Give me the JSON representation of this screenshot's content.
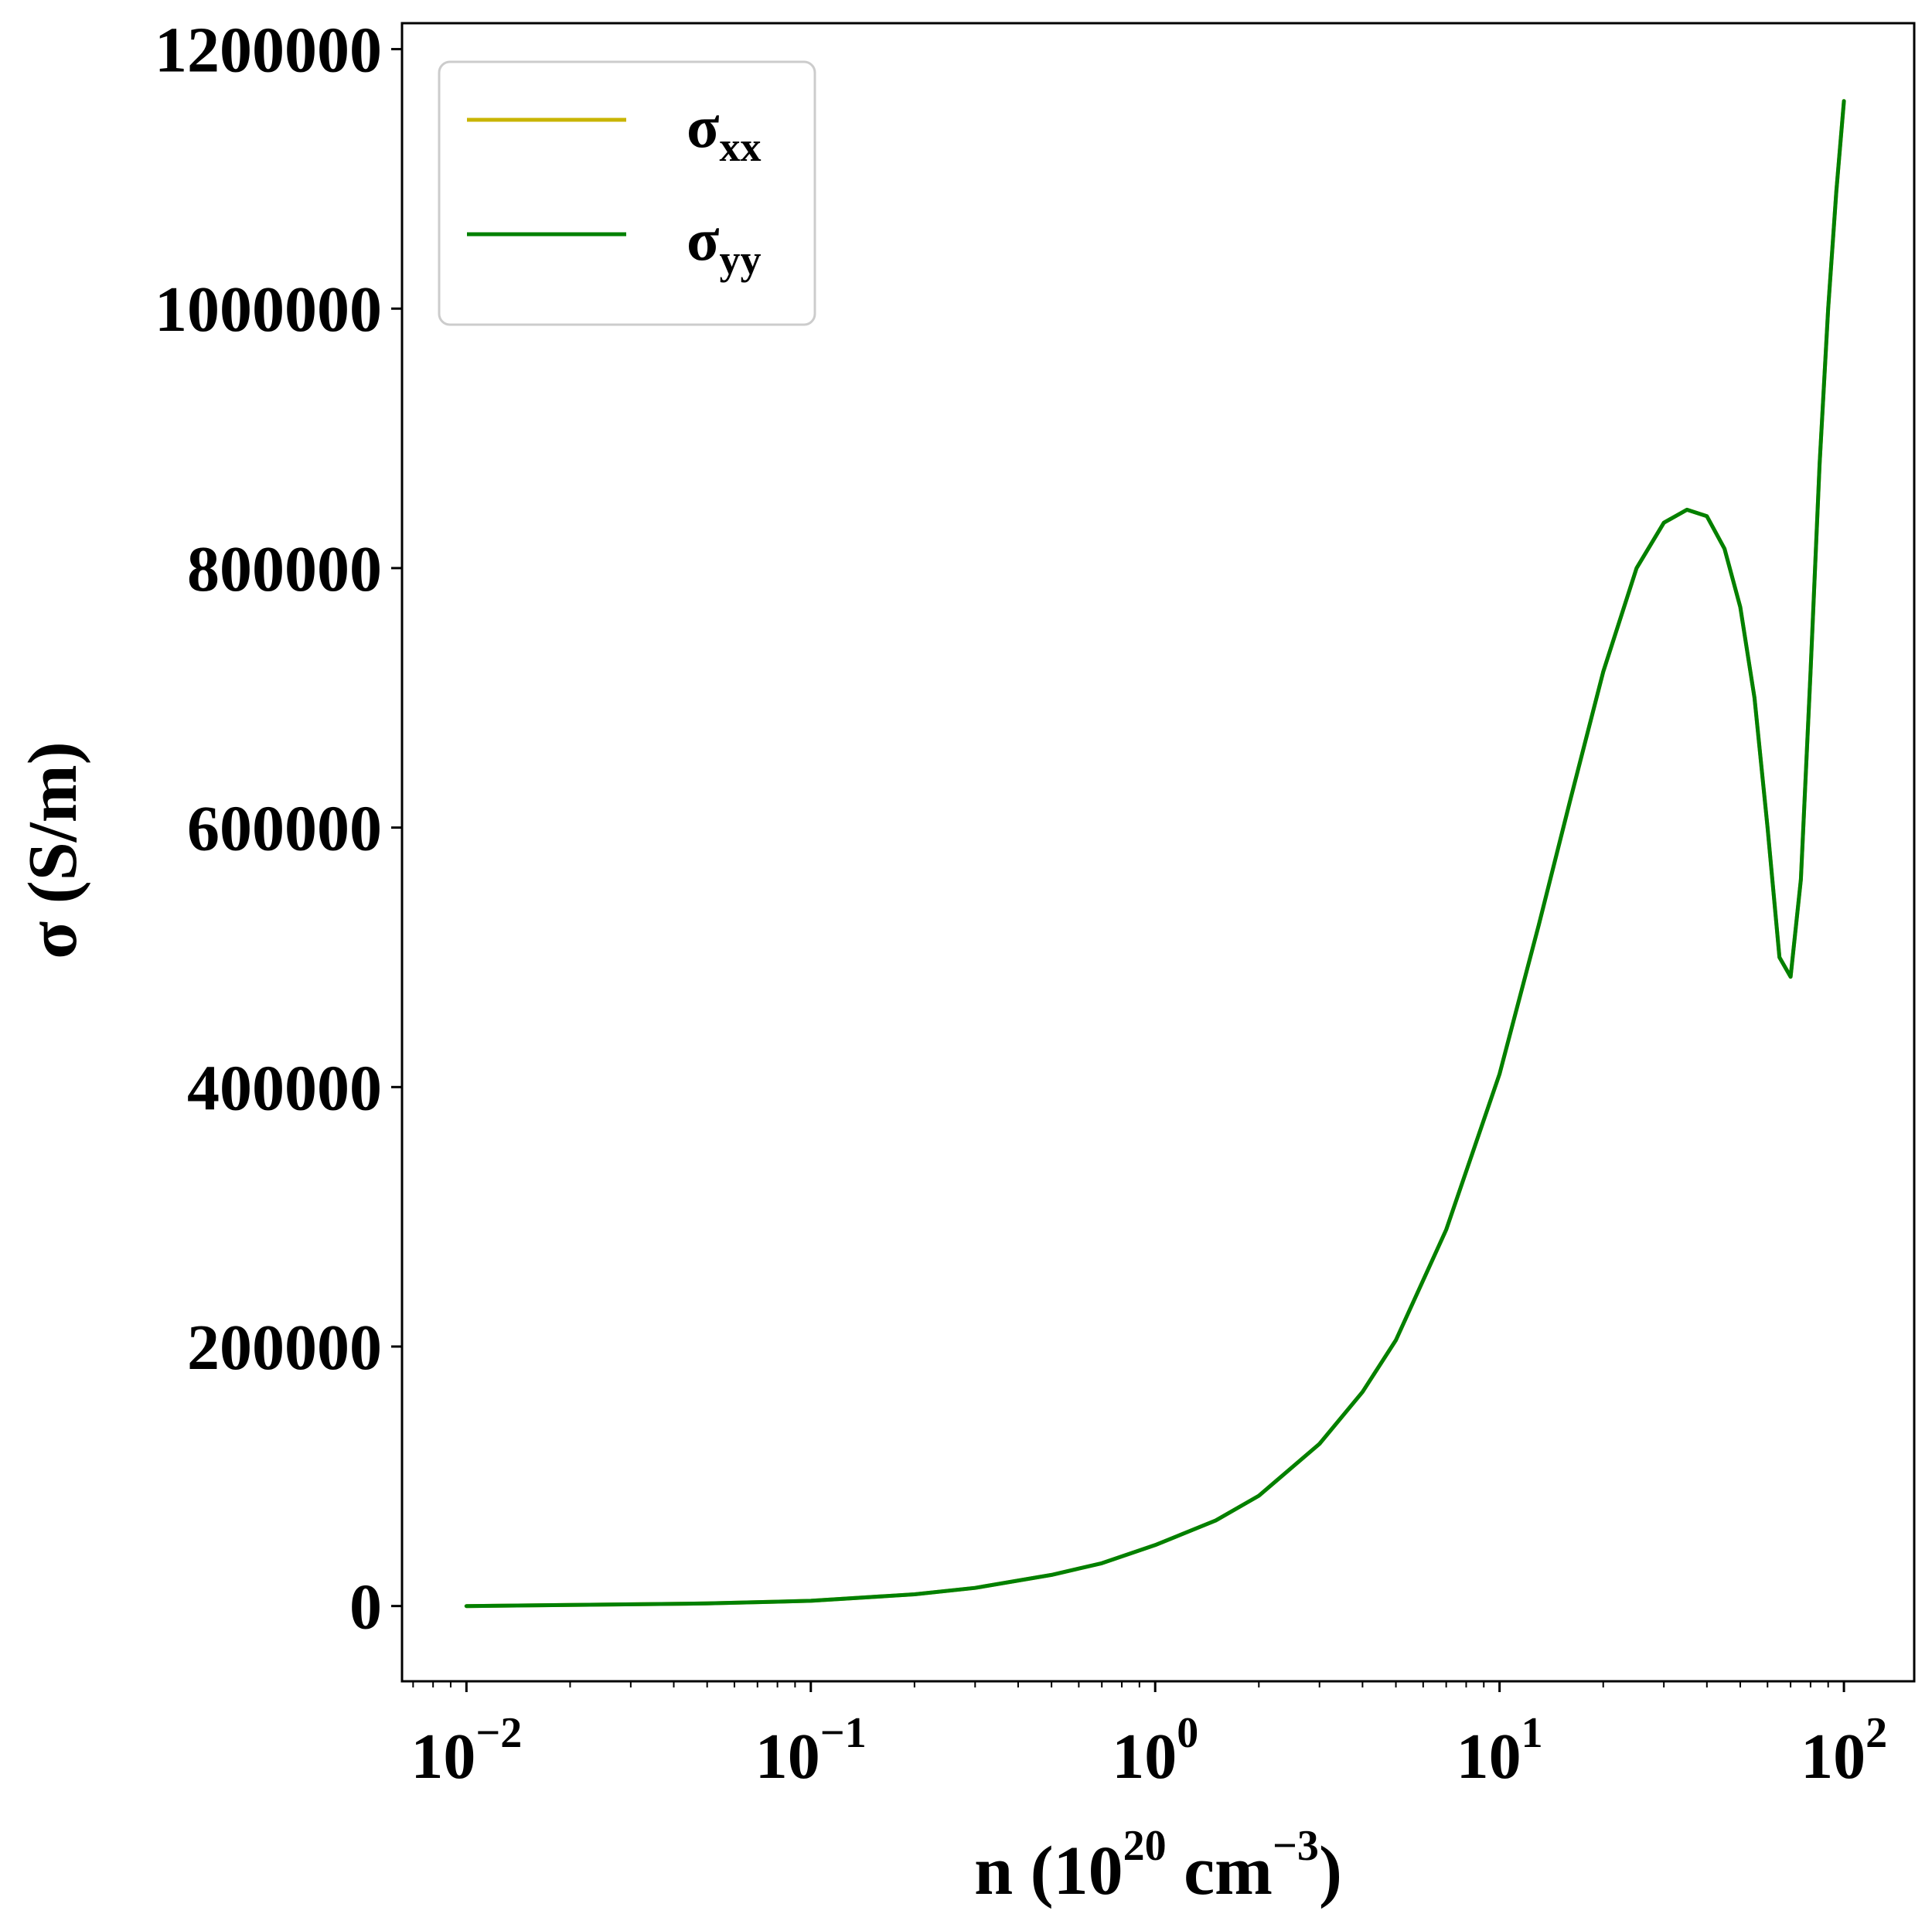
{
  "chart_data": {
    "type": "line",
    "xscale": "log",
    "xlim": [
      0.0065,
      160
    ],
    "ylim": [
      -58000,
      1220000
    ],
    "grid": false,
    "legend_position": "upper-left",
    "xlabel": {
      "base": "n (10",
      "sup1": "20",
      "mid": " cm",
      "sup2": "−3",
      "end": ")"
    },
    "ylabel": "σ (S/m)",
    "x_ticks": [
      {
        "value": 0.01,
        "base": "10",
        "exp": "−2"
      },
      {
        "value": 0.1,
        "base": "10",
        "exp": "−1"
      },
      {
        "value": 1,
        "base": "10",
        "exp": "0"
      },
      {
        "value": 10,
        "base": "10",
        "exp": "1"
      },
      {
        "value": 100,
        "base": "10",
        "exp": "2"
      }
    ],
    "y_ticks": [
      {
        "value": 0,
        "label": "0"
      },
      {
        "value": 200000,
        "label": "200000"
      },
      {
        "value": 400000,
        "label": "400000"
      },
      {
        "value": 600000,
        "label": "600000"
      },
      {
        "value": 800000,
        "label": "800000"
      },
      {
        "value": 1000000,
        "label": "1000000"
      },
      {
        "value": 1200000,
        "label": "1200000"
      }
    ],
    "series": [
      {
        "name": {
          "base": "σ",
          "sub": "xx"
        },
        "color": "#c8b400",
        "x": [
          0.01,
          0.02,
          0.05,
          0.1,
          0.2,
          0.3,
          0.5,
          0.7,
          1.0,
          1.5,
          2.0,
          3.0,
          4.0,
          5.0,
          7.0,
          10.0,
          13.0,
          16.0,
          20.0,
          25.0,
          30.0,
          35.0,
          40.0,
          45.0,
          50.0,
          55.0,
          60.0,
          65.0,
          70.0,
          75.0,
          80.0,
          85.0,
          90.0,
          95.0,
          100.0
        ],
        "y": [
          0,
          800,
          2000,
          4000,
          9000,
          14000,
          24000,
          33000,
          47000,
          66000,
          85000,
          125000,
          165000,
          205000,
          290000,
          410000,
          525000,
          620000,
          720000,
          800000,
          835000,
          845000,
          840000,
          815000,
          770000,
          700000,
          600000,
          500000,
          485000,
          560000,
          720000,
          880000,
          1000000,
          1090000,
          1160000
        ]
      },
      {
        "name": {
          "base": "σ",
          "sub": "yy"
        },
        "color": "#008000",
        "x": [
          0.01,
          0.02,
          0.05,
          0.1,
          0.2,
          0.3,
          0.5,
          0.7,
          1.0,
          1.5,
          2.0,
          3.0,
          4.0,
          5.0,
          7.0,
          10.0,
          13.0,
          16.0,
          20.0,
          25.0,
          30.0,
          35.0,
          40.0,
          45.0,
          50.0,
          55.0,
          60.0,
          65.0,
          70.0,
          75.0,
          80.0,
          85.0,
          90.0,
          95.0,
          100.0
        ],
        "y": [
          0,
          800,
          2000,
          4000,
          9000,
          14000,
          24000,
          33000,
          47000,
          66000,
          85000,
          125000,
          165000,
          205000,
          290000,
          410000,
          525000,
          620000,
          720000,
          800000,
          835000,
          845000,
          840000,
          815000,
          770000,
          700000,
          600000,
          500000,
          485000,
          560000,
          720000,
          880000,
          1000000,
          1090000,
          1160000
        ]
      }
    ]
  }
}
